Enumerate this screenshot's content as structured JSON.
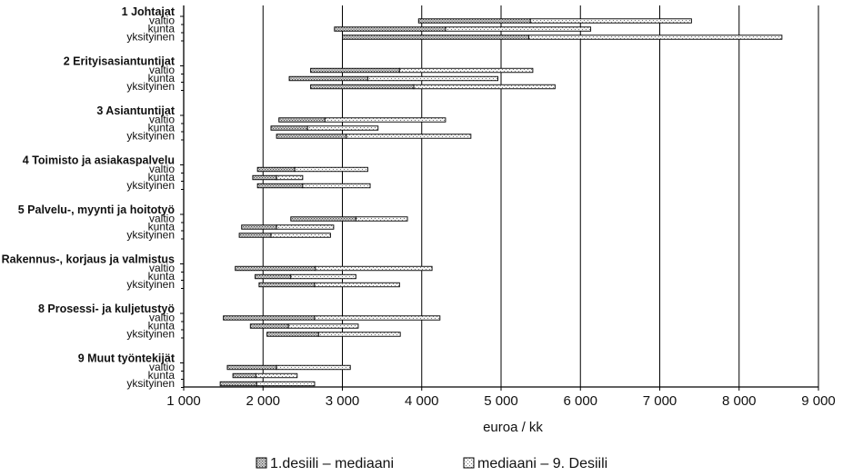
{
  "chart_data": {
    "type": "floating-bar",
    "xlabel": "euroa / kk",
    "xlim": [
      1000,
      9000
    ],
    "xticks": [
      1000,
      2000,
      3000,
      4000,
      5000,
      6000,
      7000,
      8000,
      9000
    ],
    "xtick_labels": [
      "1 000",
      "2 000",
      "3 000",
      "4 000",
      "5 000",
      "6 000",
      "7 000",
      "8 000",
      "9 000"
    ],
    "grid": "vertical",
    "legend_position": "bottom",
    "legend": [
      {
        "key": "low",
        "label": "1.desiili – mediaani"
      },
      {
        "key": "high",
        "label": "mediaani – 9. Desiili"
      }
    ],
    "groups": [
      {
        "title": "1 Johtajat",
        "rows": [
          {
            "label": "valtio",
            "d1": 3960,
            "median": 5370,
            "d9": 7400
          },
          {
            "label": "kunta",
            "d1": 2900,
            "median": 4300,
            "d9": 6130
          },
          {
            "label": "yksityinen",
            "d1": 3000,
            "median": 5350,
            "d9": 8540
          }
        ]
      },
      {
        "title": "2 Erityisasiantuntijat",
        "rows": [
          {
            "label": "valtio",
            "d1": 2600,
            "median": 3720,
            "d9": 5400
          },
          {
            "label": "kunta",
            "d1": 2330,
            "median": 3320,
            "d9": 4960
          },
          {
            "label": "yksityinen",
            "d1": 2600,
            "median": 3900,
            "d9": 5680
          }
        ]
      },
      {
        "title": "3 Asiantuntijat",
        "rows": [
          {
            "label": "valtio",
            "d1": 2200,
            "median": 2780,
            "d9": 4300
          },
          {
            "label": "kunta",
            "d1": 2100,
            "median": 2560,
            "d9": 3450
          },
          {
            "label": "yksityinen",
            "d1": 2170,
            "median": 3050,
            "d9": 4620
          }
        ]
      },
      {
        "title": "4 Toimisto ja asiakaspalvelu",
        "rows": [
          {
            "label": "valtio",
            "d1": 1930,
            "median": 2400,
            "d9": 3320
          },
          {
            "label": "kunta",
            "d1": 1870,
            "median": 2170,
            "d9": 2500
          },
          {
            "label": "yksityinen",
            "d1": 1930,
            "median": 2500,
            "d9": 3350
          }
        ]
      },
      {
        "title": "5 Palvelu-, myynti ja hoitotyö",
        "rows": [
          {
            "label": "valtio",
            "d1": 2350,
            "median": 3170,
            "d9": 3820
          },
          {
            "label": "kunta",
            "d1": 1730,
            "median": 2170,
            "d9": 2890
          },
          {
            "label": "yksityinen",
            "d1": 1700,
            "median": 2100,
            "d9": 2850
          }
        ]
      },
      {
        "title": "Rakennus-, korjaus ja valmistus",
        "rows": [
          {
            "label": "valtio",
            "d1": 1650,
            "median": 2660,
            "d9": 4130
          },
          {
            "label": "kunta",
            "d1": 1900,
            "median": 2350,
            "d9": 3170
          },
          {
            "label": "yksityinen",
            "d1": 1950,
            "median": 2650,
            "d9": 3720
          }
        ]
      },
      {
        "title": "8 Prosessi- ja kuljetustyö",
        "rows": [
          {
            "label": "valtio",
            "d1": 1500,
            "median": 2650,
            "d9": 4230
          },
          {
            "label": "kunta",
            "d1": 1840,
            "median": 2320,
            "d9": 3200
          },
          {
            "label": "yksityinen",
            "d1": 2050,
            "median": 2700,
            "d9": 3730
          }
        ]
      },
      {
        "title": "9 Muut työntekijät",
        "rows": [
          {
            "label": "valtio",
            "d1": 1550,
            "median": 2170,
            "d9": 3100
          },
          {
            "label": "kunta",
            "d1": 1620,
            "median": 1910,
            "d9": 2430
          },
          {
            "label": "yksityinen",
            "d1": 1460,
            "median": 1920,
            "d9": 2650
          }
        ]
      }
    ]
  }
}
